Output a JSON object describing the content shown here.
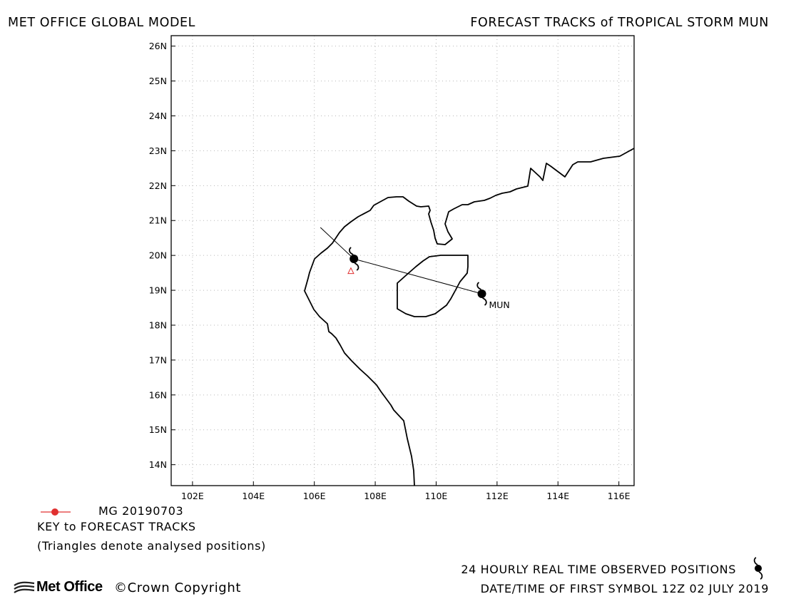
{
  "header": {
    "left_title": "MET OFFICE GLOBAL MODEL",
    "right_title": "FORECAST TRACKS of TROPICAL STORM MUN"
  },
  "map": {
    "lat_labels": [
      "26N",
      "25N",
      "24N",
      "23N",
      "22N",
      "21N",
      "20N",
      "19N",
      "18N",
      "17N",
      "16N",
      "15N",
      "14N"
    ],
    "lon_labels": [
      "102E",
      "104E",
      "106E",
      "108E",
      "110E",
      "112E",
      "114E",
      "116E"
    ],
    "lon_range": [
      101.3,
      116.5
    ],
    "lat_range": [
      13.4,
      26.3
    ],
    "colors": {
      "coast": "#000000",
      "grid": "#b8b8b8",
      "track": "#000000",
      "analysed": "#e03030"
    }
  },
  "chart_data": {
    "type": "map-track",
    "storm_name": "MUN",
    "storm_label": "MUN",
    "forecast_track": [
      {
        "lon": 111.5,
        "lat": 18.9
      },
      {
        "lon": 107.3,
        "lat": 19.9
      },
      {
        "lon": 106.2,
        "lat": 20.8
      }
    ],
    "observed_positions": [
      {
        "lon": 111.5,
        "lat": 18.9
      },
      {
        "lon": 107.3,
        "lat": 19.9
      }
    ],
    "analysed_positions": [
      {
        "lon": 107.2,
        "lat": 19.55
      }
    ]
  },
  "key": {
    "model_run": "MG 20190703",
    "title": "KEY to FORECAST TRACKS",
    "note": "(Triangles denote analysed positions)",
    "observed_text": "24 HOURLY REAL TIME OBSERVED POSITIONS",
    "date_text": "DATE/TIME OF FIRST SYMBOL 12Z 02 JULY 2019"
  },
  "footer": {
    "brand": "Met Office",
    "copyright": "©Crown Copyright"
  }
}
